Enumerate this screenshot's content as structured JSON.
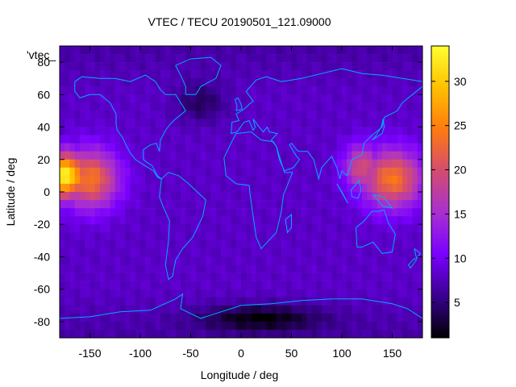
{
  "chart_data": {
    "type": "heatmap",
    "title": "VTEC / TECU 20190501_121.09000",
    "xlabel": "Longitude / deg",
    "ylabel": "Latitude / deg",
    "series_label": "'vtec_",
    "xlim": [
      -180,
      180
    ],
    "ylim": [
      -90,
      90
    ],
    "x_ticks": [
      -150,
      -100,
      -50,
      0,
      50,
      100,
      150
    ],
    "y_ticks": [
      -80,
      -60,
      -40,
      -20,
      0,
      20,
      40,
      60,
      80
    ],
    "colorbar": {
      "range": [
        1,
        34
      ],
      "ticks": [
        5,
        10,
        15,
        20,
        25,
        30
      ],
      "palette": [
        "#000000",
        "#3a0090",
        "#7a00ff",
        "#a830d0",
        "#d44c70",
        "#ff7a10",
        "#ffc000",
        "#ffff30"
      ]
    },
    "background_level": 8,
    "blobs": [
      {
        "lon": -175,
        "lat": 10,
        "value": 33,
        "sigma_lon": 22,
        "sigma_lat": 14
      },
      {
        "lon": -150,
        "lat": 8,
        "value": 24,
        "sigma_lon": 28,
        "sigma_lat": 18
      },
      {
        "lon": 150,
        "lat": 8,
        "value": 24,
        "sigma_lon": 30,
        "sigma_lat": 18
      },
      {
        "lon": 120,
        "lat": 15,
        "value": 20,
        "sigma_lon": 18,
        "sigma_lat": 14
      }
    ],
    "dark_regions": [
      {
        "lon": 20,
        "lat": -78,
        "value": 2,
        "sigma_lon": 60,
        "sigma_lat": 8
      },
      {
        "lon": -40,
        "lat": 55,
        "value": 4,
        "sigma_lon": 25,
        "sigma_lat": 12
      }
    ]
  },
  "map": {
    "coastline_color": "#00aaff"
  }
}
